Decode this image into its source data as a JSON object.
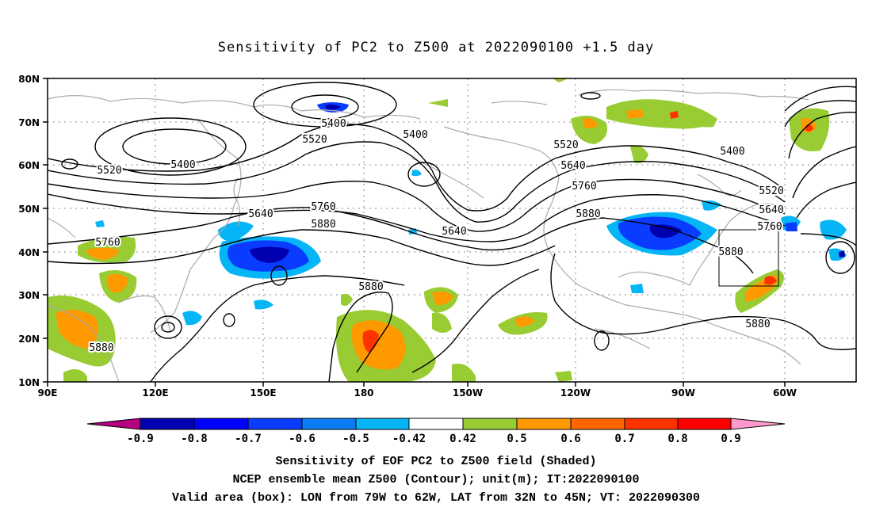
{
  "title": "Sensitivity of PC2 to Z500 at 2022090100 +1.5 day",
  "map": {
    "lat_labels": [
      "80N",
      "70N",
      "60N",
      "50N",
      "40N",
      "30N",
      "20N",
      "10N"
    ],
    "lon_labels": [
      "90E",
      "120E",
      "150E",
      "180",
      "150W",
      "120W",
      "90W",
      "60W"
    ],
    "contour_labels": [
      "5400",
      "5400",
      "5400",
      "5400",
      "5520",
      "5520",
      "5520",
      "5520",
      "5640",
      "5640",
      "5640",
      "5640",
      "5760",
      "5760",
      "5760",
      "5760",
      "5880",
      "5880",
      "5880",
      "5880",
      "5880",
      "5880"
    ],
    "valid_box": {
      "lon_west": "79W",
      "lon_east": "62W",
      "lat_south": "32N",
      "lat_north": "45N"
    }
  },
  "colorbar": {
    "labels": [
      "-0.9",
      "-0.8",
      "-0.7",
      "-0.6",
      "-0.5",
      "-0.42",
      "0.42",
      "0.5",
      "0.6",
      "0.7",
      "0.8",
      "0.9"
    ],
    "colors": [
      "#b5007f",
      "#0000b0",
      "#0000ff",
      "#0a3cff",
      "#0a7df5",
      "#05b5f5",
      "#ffffff",
      "#99cc33",
      "#ff9900",
      "#ff6600",
      "#ff3300",
      "#ff0000",
      "#ff99cc"
    ]
  },
  "captions": {
    "line1": "Sensitivity of EOF PC2 to Z500 field (Shaded)",
    "line2": "NCEP ensemble mean Z500 (Contour); unit(m); IT:2022090100",
    "line3": "Valid area (box): LON from 79W to 62W, LAT from 32N to 45N; VT: 2022090300"
  },
  "colors": {
    "land": "#aaaaaa",
    "contour": "#000000",
    "green": "#99cc33",
    "orange": "#ff9900",
    "red": "#ff3300",
    "blue": "#0a3cff",
    "lightblue": "#05b5f5"
  }
}
